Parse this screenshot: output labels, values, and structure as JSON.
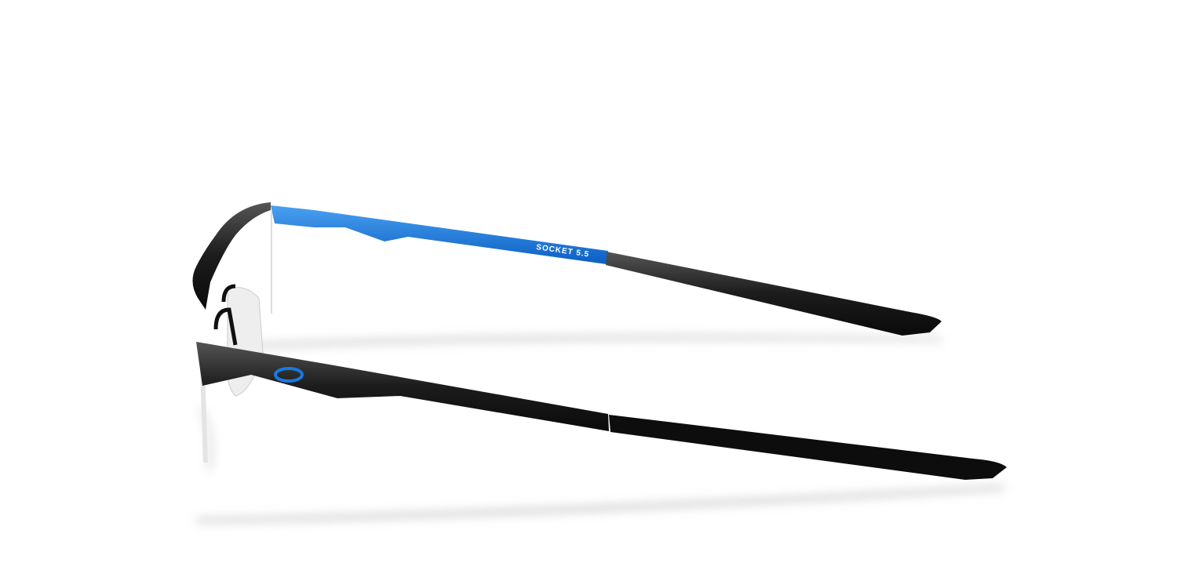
{
  "product": {
    "temple_text": "SOCKET 5.5"
  }
}
